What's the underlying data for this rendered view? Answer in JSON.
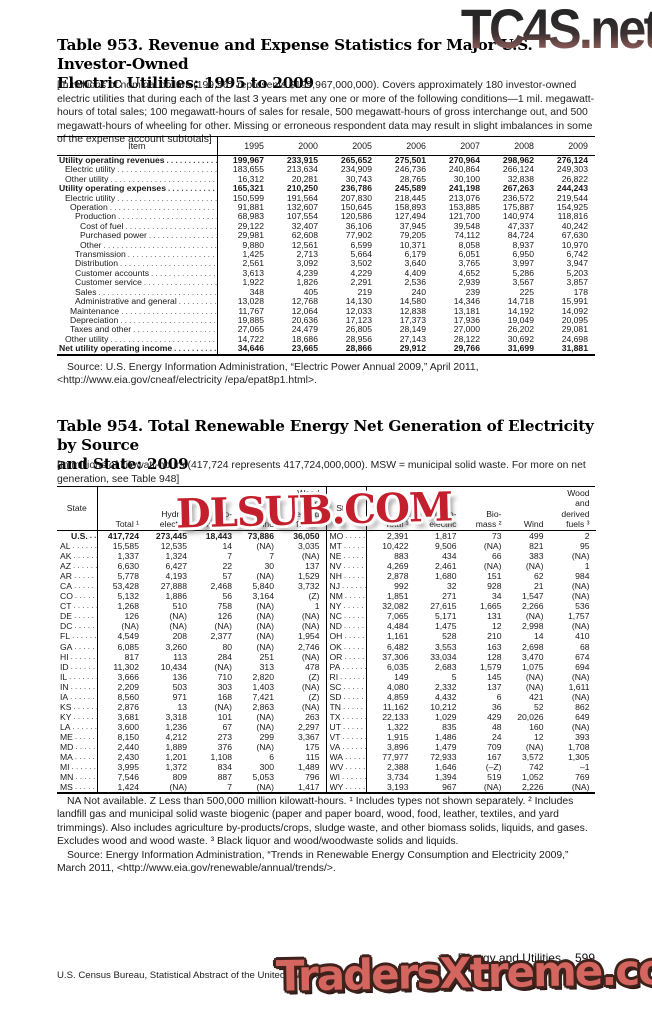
{
  "watermarks": {
    "top": "TC4S.net",
    "middle": "DLSUB.COM",
    "bottom": "TradersXtreme.com"
  },
  "table953": {
    "title": "Table 953. Revenue and Expense Statistics for Major U.S. Investor-Owned\nElectric Utilities: 1995 to 2009",
    "note": "[In millions of nominal dollars (199,967 represents $199,967,000,000). Covers approximately 180 investor-owned electric utilities that during each of the last 3 years met any one or more of the following conditions—1 mil. megawatt-hours of total sales; 100 megawatt-hours of sales for resale, 500 megawatt-hours of gross interchange out, and 500 megawatt-hours of wheeling for other. Missing or erroneous respondent data may result in slight imbalances in some of the expense account subtotals]",
    "item_header": "Item",
    "years": [
      "1995",
      "2000",
      "2005",
      "2006",
      "2007",
      "2008",
      "2009"
    ],
    "rows": [
      {
        "item": "Utility operating revenues",
        "indent": 0,
        "bold": true,
        "values": [
          "199,967",
          "233,915",
          "265,652",
          "275,501",
          "270,964",
          "298,962",
          "276,124"
        ]
      },
      {
        "item": "Electric utility",
        "indent": 1,
        "bold": false,
        "values": [
          "183,655",
          "213,634",
          "234,909",
          "246,736",
          "240,864",
          "266,124",
          "249,303"
        ]
      },
      {
        "item": "Other utility",
        "indent": 1,
        "bold": false,
        "values": [
          "16,312",
          "20,281",
          "30,743",
          "28,765",
          "30,100",
          "32,838",
          "26,822"
        ]
      },
      {
        "item": "Utility operating expenses",
        "indent": 0,
        "bold": true,
        "values": [
          "165,321",
          "210,250",
          "236,786",
          "245,589",
          "241,198",
          "267,263",
          "244,243"
        ]
      },
      {
        "item": "Electric utility",
        "indent": 1,
        "bold": false,
        "values": [
          "150,599",
          "191,564",
          "207,830",
          "218,445",
          "213,076",
          "236,572",
          "219,544"
        ]
      },
      {
        "item": "Operation",
        "indent": 2,
        "bold": false,
        "values": [
          "91,881",
          "132,607",
          "150,645",
          "158,893",
          "153,885",
          "175,887",
          "154,925"
        ]
      },
      {
        "item": "Production",
        "indent": 3,
        "bold": false,
        "values": [
          "68,983",
          "107,554",
          "120,586",
          "127,494",
          "121,700",
          "140,974",
          "118,816"
        ]
      },
      {
        "item": "Cost of fuel",
        "indent": 4,
        "bold": false,
        "values": [
          "29,122",
          "32,407",
          "36,106",
          "37,945",
          "39,548",
          "47,337",
          "40,242"
        ]
      },
      {
        "item": "Purchased power",
        "indent": 4,
        "bold": false,
        "values": [
          "29,981",
          "62,608",
          "77,902",
          "79,205",
          "74,112",
          "84,724",
          "67,630"
        ]
      },
      {
        "item": "Other",
        "indent": 4,
        "bold": false,
        "values": [
          "9,880",
          "12,561",
          "6,599",
          "10,371",
          "8,058",
          "8,937",
          "10,970"
        ]
      },
      {
        "item": "Transmission",
        "indent": 3,
        "bold": false,
        "values": [
          "1,425",
          "2,713",
          "5,664",
          "6,179",
          "6,051",
          "6,950",
          "6,742"
        ]
      },
      {
        "item": "Distribution",
        "indent": 3,
        "bold": false,
        "values": [
          "2,561",
          "3,092",
          "3,502",
          "3,640",
          "3,765",
          "3,997",
          "3,947"
        ]
      },
      {
        "item": "Customer accounts",
        "indent": 3,
        "bold": false,
        "values": [
          "3,613",
          "4,239",
          "4,229",
          "4,409",
          "4,652",
          "5,286",
          "5,203"
        ]
      },
      {
        "item": "Customer service",
        "indent": 3,
        "bold": false,
        "values": [
          "1,922",
          "1,826",
          "2,291",
          "2,536",
          "2,939",
          "3,567",
          "3,857"
        ]
      },
      {
        "item": "Sales",
        "indent": 3,
        "bold": false,
        "values": [
          "348",
          "405",
          "219",
          "240",
          "239",
          "225",
          "178"
        ]
      },
      {
        "item": "Administrative and general",
        "indent": 3,
        "bold": false,
        "values": [
          "13,028",
          "12,768",
          "14,130",
          "14,580",
          "14,346",
          "14,718",
          "15,991"
        ]
      },
      {
        "item": "Maintenance",
        "indent": 2,
        "bold": false,
        "values": [
          "11,767",
          "12,064",
          "12,033",
          "12,838",
          "13,181",
          "14,192",
          "14,092"
        ]
      },
      {
        "item": "Depreciation",
        "indent": 2,
        "bold": false,
        "values": [
          "19,885",
          "20,636",
          "17,123",
          "17,373",
          "17,936",
          "19,049",
          "20,095"
        ]
      },
      {
        "item": "Taxes and other",
        "indent": 2,
        "bold": false,
        "values": [
          "27,065",
          "24,479",
          "26,805",
          "28,149",
          "27,000",
          "26,202",
          "29,081"
        ]
      },
      {
        "item": "Other utility",
        "indent": 1,
        "bold": false,
        "values": [
          "14,722",
          "18,686",
          "28,956",
          "27,143",
          "28,122",
          "30,692",
          "24,698"
        ]
      },
      {
        "item": "Net utility operating income",
        "indent": 0,
        "bold": true,
        "values": [
          "34,646",
          "23,665",
          "28,866",
          "29,912",
          "29,766",
          "31,699",
          "31,881"
        ]
      }
    ],
    "source": "Source: U.S. Energy Information Administration, “Electric Power Annual 2009,” April 2011, <http://www.eia.gov/cneaf/electricity /epa/epat8p1.html>."
  },
  "table954": {
    "title": "Table 954. Total Renewable Energy Net Generation of Electricity by Source\nand State: 2009",
    "note": "[In millions of kilowatt-hours (417,724 represents 417,724,000,000). MSW = municipal solid waste. For more on net generation, see Table 948]",
    "headers": {
      "state": "State",
      "total": "Total ¹",
      "hydro": "Hydro-\nelectric",
      "biomass": "Bio-\nmass ²",
      "wind": "Wind",
      "wood": "Wood\nand\nderived\nfuels ³"
    },
    "left_rows": [
      {
        "state": "U.S.",
        "bold": true,
        "values": [
          "417,724",
          "273,445",
          "18,443",
          "73,886",
          "36,050"
        ]
      },
      {
        "state": "AL",
        "bold": false,
        "values": [
          "15,585",
          "12,535",
          "14",
          "(NA)",
          "3,035"
        ]
      },
      {
        "state": "AK",
        "bold": false,
        "values": [
          "1,337",
          "1,324",
          "7",
          "7",
          "(NA)"
        ]
      },
      {
        "state": "AZ",
        "bold": false,
        "values": [
          "6,630",
          "6,427",
          "22",
          "30",
          "137"
        ]
      },
      {
        "state": "AR",
        "bold": false,
        "values": [
          "5,778",
          "4,193",
          "57",
          "(NA)",
          "1,529"
        ]
      },
      {
        "state": "CA",
        "bold": false,
        "values": [
          "53,428",
          "27,888",
          "2,468",
          "5,840",
          "3,732"
        ]
      },
      {
        "state": "CO",
        "bold": false,
        "values": [
          "5,132",
          "1,886",
          "56",
          "3,164",
          "(Z)"
        ]
      },
      {
        "state": "CT",
        "bold": false,
        "values": [
          "1,268",
          "510",
          "758",
          "(NA)",
          "1"
        ]
      },
      {
        "state": "DE",
        "bold": false,
        "values": [
          "126",
          "(NA)",
          "126",
          "(NA)",
          "(NA)"
        ]
      },
      {
        "state": "DC",
        "bold": false,
        "values": [
          "(NA)",
          "(NA)",
          "(NA)",
          "(NA)",
          "(NA)"
        ]
      },
      {
        "state": "FL",
        "bold": false,
        "values": [
          "4,549",
          "208",
          "2,377",
          "(NA)",
          "1,954"
        ]
      },
      {
        "state": "GA",
        "bold": false,
        "values": [
          "6,085",
          "3,260",
          "80",
          "(NA)",
          "2,746"
        ]
      },
      {
        "state": "HI",
        "bold": false,
        "values": [
          "817",
          "113",
          "284",
          "251",
          "(NA)"
        ]
      },
      {
        "state": "ID",
        "bold": false,
        "values": [
          "11,302",
          "10,434",
          "(NA)",
          "313",
          "478"
        ]
      },
      {
        "state": "IL",
        "bold": false,
        "values": [
          "3,666",
          "136",
          "710",
          "2,820",
          "(Z)"
        ]
      },
      {
        "state": "IN",
        "bold": false,
        "values": [
          "2,209",
          "503",
          "303",
          "1,403",
          "(NA)"
        ]
      },
      {
        "state": "IA",
        "bold": false,
        "values": [
          "8,560",
          "971",
          "168",
          "7,421",
          "(Z)"
        ]
      },
      {
        "state": "KS",
        "bold": false,
        "values": [
          "2,876",
          "13",
          "(NA)",
          "2,863",
          "(NA)"
        ]
      },
      {
        "state": "KY",
        "bold": false,
        "values": [
          "3,681",
          "3,318",
          "101",
          "(NA)",
          "263"
        ]
      },
      {
        "state": "LA",
        "bold": false,
        "values": [
          "3,600",
          "1,236",
          "67",
          "(NA)",
          "2,297"
        ]
      },
      {
        "state": "ME",
        "bold": false,
        "values": [
          "8,150",
          "4,212",
          "273",
          "299",
          "3,367"
        ]
      },
      {
        "state": "MD",
        "bold": false,
        "values": [
          "2,440",
          "1,889",
          "376",
          "(NA)",
          "175"
        ]
      },
      {
        "state": "MA",
        "bold": false,
        "values": [
          "2,430",
          "1,201",
          "1,108",
          "6",
          "115"
        ]
      },
      {
        "state": "MI",
        "bold": false,
        "values": [
          "3,995",
          "1,372",
          "834",
          "300",
          "1,489"
        ]
      },
      {
        "state": "MN",
        "bold": false,
        "values": [
          "7,546",
          "809",
          "887",
          "5,053",
          "796"
        ]
      },
      {
        "state": "MS",
        "bold": false,
        "values": [
          "1,424",
          "(NA)",
          "7",
          "(NA)",
          "1,417"
        ]
      }
    ],
    "right_rows": [
      {
        "state": "MO",
        "bold": false,
        "values": [
          "2,391",
          "1,817",
          "73",
          "499",
          "2"
        ]
      },
      {
        "state": "MT",
        "bold": false,
        "values": [
          "10,422",
          "9,506",
          "(NA)",
          "821",
          "95"
        ]
      },
      {
        "state": "NE",
        "bold": false,
        "values": [
          "883",
          "434",
          "66",
          "383",
          "(NA)"
        ]
      },
      {
        "state": "NV",
        "bold": false,
        "values": [
          "4,269",
          "2,461",
          "(NA)",
          "(NA)",
          "1"
        ]
      },
      {
        "state": "NH",
        "bold": false,
        "values": [
          "2,878",
          "1,680",
          "151",
          "62",
          "984"
        ]
      },
      {
        "state": "NJ",
        "bold": false,
        "values": [
          "992",
          "32",
          "928",
          "21",
          "(NA)"
        ]
      },
      {
        "state": "NM",
        "bold": false,
        "values": [
          "1,851",
          "271",
          "34",
          "1,547",
          "(NA)"
        ]
      },
      {
        "state": "NY",
        "bold": false,
        "values": [
          "32,082",
          "27,615",
          "1,665",
          "2,266",
          "536"
        ]
      },
      {
        "state": "NC",
        "bold": false,
        "values": [
          "7,065",
          "5,171",
          "131",
          "(NA)",
          "1,757"
        ]
      },
      {
        "state": "ND",
        "bold": false,
        "values": [
          "4,484",
          "1,475",
          "12",
          "2,998",
          "(NA)"
        ]
      },
      {
        "state": "OH",
        "bold": false,
        "values": [
          "1,161",
          "528",
          "210",
          "14",
          "410"
        ]
      },
      {
        "state": "OK",
        "bold": false,
        "values": [
          "6,482",
          "3,553",
          "163",
          "2,698",
          "68"
        ]
      },
      {
        "state": "OR",
        "bold": false,
        "values": [
          "37,306",
          "33,034",
          "128",
          "3,470",
          "674"
        ]
      },
      {
        "state": "PA",
        "bold": false,
        "values": [
          "6,035",
          "2,683",
          "1,579",
          "1,075",
          "694"
        ]
      },
      {
        "state": "RI",
        "bold": false,
        "values": [
          "149",
          "5",
          "145",
          "(NA)",
          "(NA)"
        ]
      },
      {
        "state": "SC",
        "bold": false,
        "values": [
          "4,080",
          "2,332",
          "137",
          "(NA)",
          "1,611"
        ]
      },
      {
        "state": "SD",
        "bold": false,
        "values": [
          "4,859",
          "4,432",
          "6",
          "421",
          "(NA)"
        ]
      },
      {
        "state": "TN",
        "bold": false,
        "values": [
          "11,162",
          "10,212",
          "36",
          "52",
          "862"
        ]
      },
      {
        "state": "TX",
        "bold": false,
        "values": [
          "22,133",
          "1,029",
          "429",
          "20,026",
          "649"
        ]
      },
      {
        "state": "UT",
        "bold": false,
        "values": [
          "1,322",
          "835",
          "48",
          "160",
          "(NA)"
        ]
      },
      {
        "state": "VT",
        "bold": false,
        "values": [
          "1,915",
          "1,486",
          "24",
          "12",
          "393"
        ]
      },
      {
        "state": "VA",
        "bold": false,
        "values": [
          "3,896",
          "1,479",
          "709",
          "(NA)",
          "1,708"
        ]
      },
      {
        "state": "WA",
        "bold": false,
        "values": [
          "77,977",
          "72,933",
          "167",
          "3,572",
          "1,305"
        ]
      },
      {
        "state": "WV",
        "bold": false,
        "values": [
          "2,388",
          "1,646",
          "(–Z)",
          "742",
          "–1"
        ]
      },
      {
        "state": "WI",
        "bold": false,
        "values": [
          "3,734",
          "1,394",
          "519",
          "1,052",
          "769"
        ]
      },
      {
        "state": "WY",
        "bold": false,
        "values": [
          "3,193",
          "967",
          "(NA)",
          "2,226",
          "(NA)"
        ]
      }
    ],
    "footnote": "NA Not available. Z Less than 500,000 million kilowatt-hours. ¹ Includes types not shown separately. ² Includes landfill gas and municipal solid waste biogenic (paper and paper board, wood, food, leather, textiles, and yard trimmings). Also includes agriculture by-products/crops, sludge waste, and other biomass solids, liquids, and gases. Excludes wood and wood waste. ³ Black liquor and wood/woodwaste solids and liquids.",
    "source": "Source: Energy Information Administration, “Trends in Renewable Energy Consumption and Electricity 2009,” March 2011, <http://www.eia.gov/renewable/annual/trends/>."
  },
  "footer": {
    "section": "Energy and Utilities",
    "page": "599",
    "credit": "U.S. Census Bureau, Statistical Abstract of the United States: 2012"
  }
}
